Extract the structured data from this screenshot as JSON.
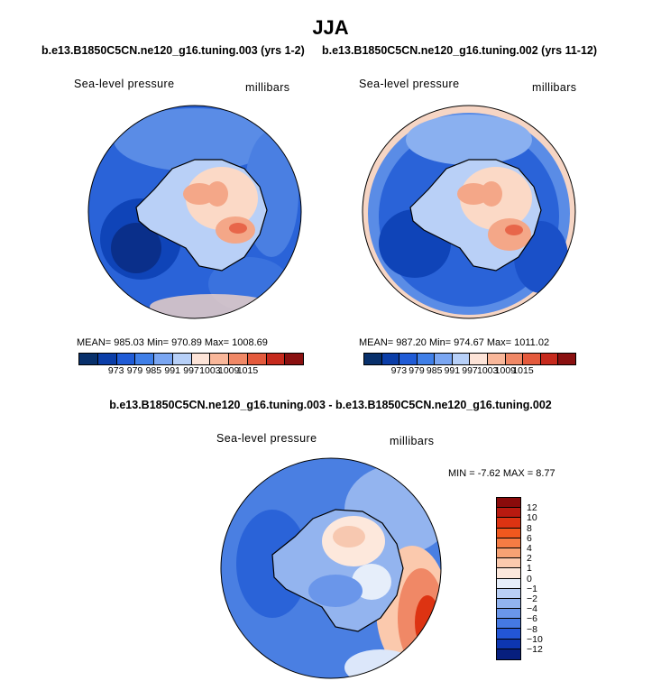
{
  "title": "JJA",
  "panel_left": {
    "case": "b.e13.B1850C5CN.ne120_g16.tuning.003 (yrs 1-2)",
    "variable": "Sea-level pressure",
    "units": "millibars",
    "stats": "MEAN= 985.03   Min= 970.89   Max= 1008.69"
  },
  "panel_right": {
    "case": "b.e13.B1850C5CN.ne120_g16.tuning.002 (yrs 11-12)",
    "variable": "Sea-level pressure",
    "units": "millibars",
    "stats": "MEAN= 987.20   Min= 974.67   Max= 1011.02"
  },
  "colorbar_top": {
    "colors": [
      "#08306b",
      "#0b3ea8",
      "#1f5bd6",
      "#3f7fe8",
      "#7aa6f2",
      "#b7d0f8",
      "#fde4d8",
      "#f9b79a",
      "#f08866",
      "#e45a3d",
      "#c62a1d",
      "#8a1010"
    ],
    "labels": [
      "973",
      "979",
      "985",
      "991",
      "997",
      "1003",
      "1009",
      "1015"
    ]
  },
  "diff_panel": {
    "case": "b.e13.B1850C5CN.ne120_g16.tuning.003 - b.e13.B1850C5CN.ne120_g16.tuning.002",
    "variable": "Sea-level pressure",
    "units": "millibars",
    "stats": "MIN =   -7.62  MAX =    8.77"
  },
  "colorbar_diff": {
    "colors": [
      "#8a0b0b",
      "#b81a10",
      "#dd3312",
      "#f0581e",
      "#f57c44",
      "#f7a274",
      "#fbc9ad",
      "#fde8dc",
      "#e6eefa",
      "#b9cff5",
      "#91b3ef",
      "#6a96ea",
      "#4579e3",
      "#2356d6",
      "#0d36b0",
      "#071f7e"
    ],
    "labels": [
      "12",
      "10",
      "8",
      "6",
      "4",
      "2",
      "1",
      "0",
      "−1",
      "−2",
      "−4",
      "−6",
      "−8",
      "−10",
      "−12"
    ]
  }
}
